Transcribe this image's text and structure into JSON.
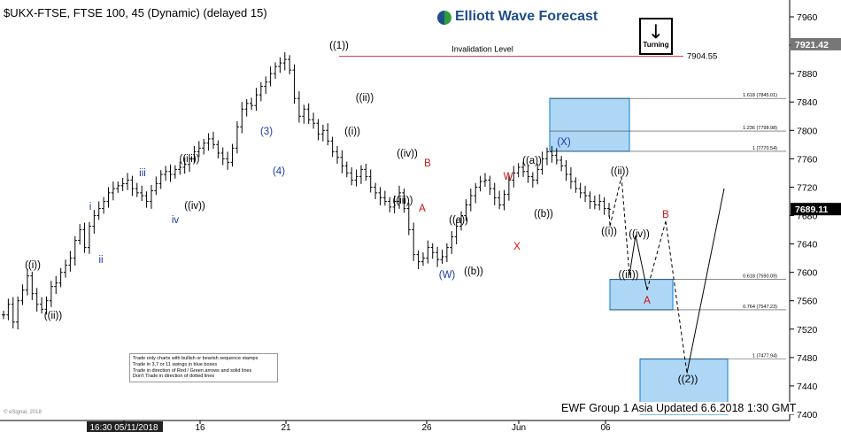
{
  "header": {
    "ticker": "$UKX-FTSE, FTSE 100, 45 (Dynamic) (delayed 15)",
    "logo": "Elliott Wave Forecast",
    "turning": "Turning",
    "copyright": "© eSignal, 2018"
  },
  "footer": {
    "text": "EWF Group 1 Asia Updated 6.6.2018 1:30 GMT"
  },
  "legend": {
    "lines": [
      "Trade only charts with bullish or bearish sequence stamps",
      "Trade in 3,7 or 11 swings in blue boxes",
      "Trade in direction of Red / Green arrows and solid lines",
      "Don't Trade in direction of dotted lines"
    ]
  },
  "colors": {
    "blue_label": "#1a3aa8",
    "red_label": "#cc1111",
    "box_fill": "#aed6f5",
    "box_stroke": "#2b8fd9",
    "invalidation": "#e04040",
    "current_price_bg": "#000000"
  },
  "chart_data": {
    "type": "line",
    "y_range": [
      7400,
      7960
    ],
    "y_ticks": [
      7960,
      7920,
      7880,
      7840,
      7800,
      7760,
      7720,
      7680,
      7640,
      7600,
      7560,
      7520,
      7480,
      7440,
      7400
    ],
    "x_ticks": [
      "16:30 05/11/2018",
      "16",
      "21",
      "26",
      "Jun",
      "06"
    ],
    "current_price": "7689.11",
    "last_label": "7921.42",
    "invalidation": {
      "label": "Invalidation Level",
      "value": "7904.55",
      "price": 7904.55
    },
    "price_series": [
      7540,
      7555,
      7530,
      7560,
      7575,
      7595,
      7570,
      7555,
      7548,
      7560,
      7580,
      7585,
      7600,
      7610,
      7620,
      7645,
      7660,
      7635,
      7665,
      7680,
      7690,
      7700,
      7712,
      7718,
      7722,
      7725,
      7730,
      7718,
      7712,
      7708,
      7700,
      7715,
      7725,
      7738,
      7742,
      7738,
      7745,
      7748,
      7752,
      7760,
      7770,
      7775,
      7782,
      7788,
      7780,
      7768,
      7760,
      7755,
      7775,
      7805,
      7830,
      7838,
      7835,
      7850,
      7862,
      7868,
      7880,
      7890,
      7895,
      7900,
      7885,
      7845,
      7820,
      7830,
      7815,
      7810,
      7795,
      7800,
      7785,
      7770,
      7762,
      7750,
      7740,
      7730,
      7735,
      7745,
      7735,
      7720,
      7712,
      7705,
      7700,
      7692,
      7700,
      7712,
      7690,
      7660,
      7625,
      7615,
      7620,
      7635,
      7628,
      7618,
      7622,
      7635,
      7650,
      7665,
      7680,
      7695,
      7708,
      7720,
      7728,
      7730,
      7718,
      7705,
      7695,
      7710,
      7730,
      7740,
      7748,
      7742,
      7735,
      7730,
      7745,
      7760,
      7770,
      7765,
      7758,
      7750,
      7738,
      7728,
      7718,
      7712,
      7708,
      7700,
      7695,
      7700,
      7690,
      7689
    ],
    "projection": {
      "solid": [
        [
          7689,
          7664
        ],
        [
          7736,
          7596
        ],
        [
          7670,
          7578
        ],
        [
          7596,
          7596
        ]
      ],
      "points": {
        "i_end": 7665,
        "ii_end": 7735,
        "iii_end": 7596,
        "iv_end": 7652,
        "A_end": 7575,
        "B_end": 7672,
        "wave2_end": 7458,
        "final": 7718
      }
    },
    "boxes": [
      {
        "levels": [
          {
            "label": "1.618 (7845.01)",
            "price": 7845.01
          },
          {
            "label": "1.236 (7798.98)",
            "price": 7798.98
          },
          {
            "label": "1 (7770.54)",
            "price": 7770.54
          }
        ],
        "top": 7845.01,
        "bottom": 7770.54
      },
      {
        "levels": [
          {
            "label": "0.618 (7590.09)",
            "price": 7590.09
          },
          {
            "label": "0.764 (7547.23)",
            "price": 7547.23
          }
        ],
        "top": 7590.09,
        "bottom": 7547.23
      },
      {
        "levels": [
          {
            "label": "1 (7477.94)",
            "price": 7477.94
          }
        ],
        "top": 7477.94,
        "bottom": 7400
      }
    ],
    "wave_labels": [
      {
        "text": "((i))",
        "color": "black"
      },
      {
        "text": "((ii))",
        "color": "black"
      },
      {
        "text": "i",
        "color": "blue"
      },
      {
        "text": "ii",
        "color": "blue"
      },
      {
        "text": "iii",
        "color": "blue"
      },
      {
        "text": "iv",
        "color": "blue"
      },
      {
        "text": "((iii))",
        "color": "black"
      },
      {
        "text": "((iv))",
        "color": "black"
      },
      {
        "text": "(3)",
        "color": "blue"
      },
      {
        "text": "(4)",
        "color": "blue"
      },
      {
        "text": "((1))",
        "color": "black"
      },
      {
        "text": "((ii))",
        "color": "black"
      },
      {
        "text": "((i))",
        "color": "black"
      },
      {
        "text": "((iv))",
        "color": "black"
      },
      {
        "text": "((iii))",
        "color": "black"
      },
      {
        "text": "B",
        "color": "red"
      },
      {
        "text": "A",
        "color": "red"
      },
      {
        "text": "((a))",
        "color": "black"
      },
      {
        "text": "((b))",
        "color": "black"
      },
      {
        "text": "(W)",
        "color": "blue"
      },
      {
        "text": "W",
        "color": "red"
      },
      {
        "text": "X",
        "color": "red"
      },
      {
        "text": "((a))",
        "color": "black"
      },
      {
        "text": "((b))",
        "color": "black"
      },
      {
        "text": "(X)",
        "color": "blue"
      },
      {
        "text": "((ii))",
        "color": "black"
      },
      {
        "text": "((i))",
        "color": "black"
      },
      {
        "text": "((iv))",
        "color": "black"
      },
      {
        "text": "((iii))",
        "color": "black"
      },
      {
        "text": "B",
        "color": "red"
      },
      {
        "text": "A",
        "color": "red"
      },
      {
        "text": "((2))",
        "color": "black"
      }
    ]
  }
}
